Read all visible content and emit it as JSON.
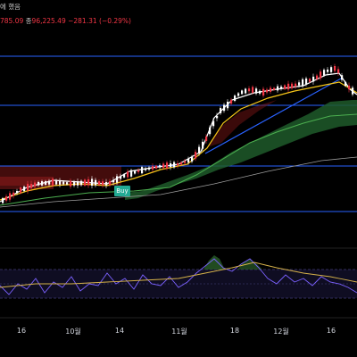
{
  "header": {
    "line1_suffix": "에 했음",
    "line2_open_fragment": "785.09",
    "line2_close_label": "종",
    "line2_close_value": "96,225.49",
    "line2_change": "−281.31 (−0.29%)"
  },
  "buy_signal": {
    "label": "Buy"
  },
  "x_axis": {
    "labels": [
      "16",
      "10월",
      "14",
      "11월",
      "18",
      "12월",
      "16"
    ]
  },
  "colors": {
    "background": "#000000",
    "up_candle": "#ffffff",
    "down_candle": "#f23645",
    "zone_line": "#2962ff",
    "ma_yellow": "#f5c518",
    "ma_white": "#ffffff",
    "cloud_green": "#1b5e20",
    "red_zone": "#8b1a1a",
    "oscillator_purple": "#7b61ff",
    "oscillator_yellow": "#d6b24a"
  }
}
